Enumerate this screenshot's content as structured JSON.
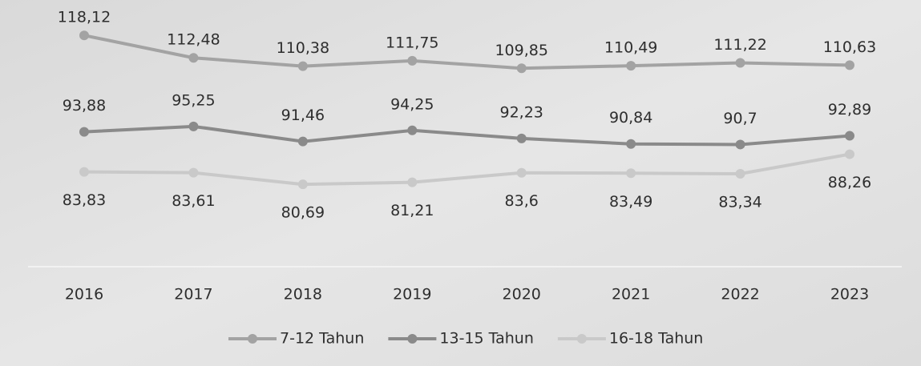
{
  "chart_data": {
    "type": "line",
    "categories": [
      "2016",
      "2017",
      "2018",
      "2019",
      "2020",
      "2021",
      "2022",
      "2023"
    ],
    "series": [
      {
        "name": "7-12 Tahun",
        "color": "#a3a3a3",
        "values": [
          118.12,
          112.48,
          110.38,
          111.75,
          109.85,
          110.49,
          111.22,
          110.63
        ],
        "value_labels": [
          "118,12",
          "112,48",
          "110,38",
          "111,75",
          "109,85",
          "110,49",
          "111,22",
          "110,63"
        ]
      },
      {
        "name": "13-15 Tahun",
        "color": "#8a8a8a",
        "values": [
          93.88,
          95.25,
          91.46,
          94.25,
          92.23,
          90.84,
          90.7,
          92.89
        ],
        "value_labels": [
          "93,88",
          "95,25",
          "91,46",
          "94,25",
          "92,23",
          "90,84",
          "90,7",
          "92,89"
        ]
      },
      {
        "name": "16-18 Tahun",
        "color": "#c9c9c9",
        "values": [
          83.83,
          83.61,
          80.69,
          81.21,
          83.6,
          83.49,
          83.34,
          88.26
        ],
        "value_labels": [
          "83,83",
          "83,61",
          "80,69",
          "81,21",
          "83,6",
          "83,49",
          "83,34",
          "88,26"
        ]
      }
    ],
    "ylim": [
      60,
      125
    ],
    "legend": "bottom"
  }
}
